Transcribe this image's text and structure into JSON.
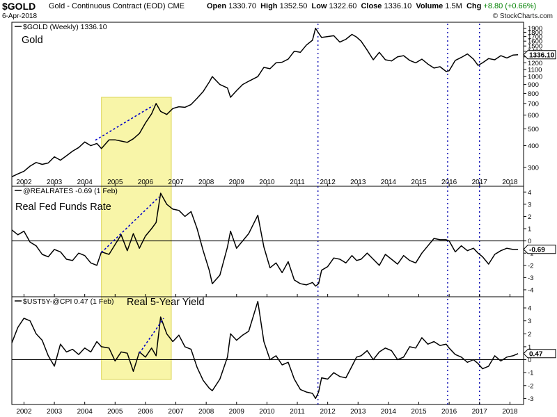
{
  "header": {
    "symbol": "$GOLD",
    "name": "Gold - Continuous Contract (EOD) CME",
    "date": "6-Apr-2018",
    "open_label": "Open",
    "open": "1330.70",
    "high_label": "High",
    "high": "1352.50",
    "low_label": "Low",
    "low": "1322.60",
    "close_label": "Close",
    "close": "1336.10",
    "volume_label": "Volume",
    "volume": "1.5M",
    "chg_label": "Chg",
    "chg": "+8.80 (+0.66%)",
    "chg_color": "#008000",
    "watermark": "© StockCharts.com"
  },
  "colors": {
    "highlight_fill": "#f7f49a",
    "highlight_stroke": "#d8cf3a",
    "trend_line": "#0000c8",
    "event_line": "#0000b0",
    "price_line": "#000000",
    "zero_line": "#000000"
  },
  "chart_data": [
    {
      "type": "line",
      "panel_title": "$GOLD (Weekly) 1336.10",
      "label": "Gold",
      "ylim": [
        240,
        2000
      ],
      "y_scale": "log",
      "y_ticks": [
        300,
        400,
        500,
        600,
        700,
        800,
        900,
        1000,
        1100,
        1200,
        1300,
        1400,
        1500,
        1600,
        1700,
        1800,
        1900
      ],
      "last_value_label": "1336.10",
      "x": [
        2001.6,
        2001.8,
        2002.0,
        2002.2,
        2002.4,
        2002.6,
        2002.8,
        2003.0,
        2003.2,
        2003.4,
        2003.6,
        2003.8,
        2004.0,
        2004.2,
        2004.4,
        2004.55,
        2004.8,
        2005.0,
        2005.2,
        2005.4,
        2005.6,
        2005.8,
        2006.0,
        2006.2,
        2006.35,
        2006.5,
        2006.7,
        2006.9,
        2007.1,
        2007.3,
        2007.5,
        2007.7,
        2007.9,
        2008.1,
        2008.2,
        2008.45,
        2008.7,
        2008.8,
        2009.0,
        2009.2,
        2009.4,
        2009.7,
        2009.9,
        2010.1,
        2010.3,
        2010.5,
        2010.7,
        2010.9,
        2011.1,
        2011.3,
        2011.5,
        2011.6,
        2011.7,
        2011.8,
        2012.0,
        2012.2,
        2012.4,
        2012.6,
        2012.8,
        2012.95,
        2013.1,
        2013.3,
        2013.5,
        2013.7,
        2013.9,
        2014.1,
        2014.3,
        2014.5,
        2014.7,
        2014.9,
        2015.1,
        2015.3,
        2015.5,
        2015.7,
        2015.9,
        2016.0,
        2016.2,
        2016.4,
        2016.6,
        2016.8,
        2016.95,
        2017.1,
        2017.3,
        2017.5,
        2017.7,
        2017.9,
        2018.1,
        2018.27
      ],
      "y": [
        265,
        275,
        285,
        305,
        320,
        312,
        318,
        345,
        330,
        350,
        372,
        390,
        420,
        400,
        412,
        385,
        432,
        432,
        425,
        418,
        438,
        470,
        540,
        610,
        700,
        630,
        605,
        655,
        670,
        665,
        690,
        750,
        820,
        930,
        1000,
        900,
        860,
        760,
        830,
        900,
        940,
        1000,
        1130,
        1110,
        1200,
        1210,
        1260,
        1400,
        1380,
        1520,
        1620,
        1900,
        1780,
        1680,
        1700,
        1720,
        1580,
        1640,
        1750,
        1690,
        1600,
        1420,
        1250,
        1380,
        1250,
        1230,
        1300,
        1320,
        1240,
        1200,
        1260,
        1180,
        1120,
        1140,
        1070,
        1080,
        1240,
        1290,
        1350,
        1260,
        1160,
        1200,
        1270,
        1250,
        1320,
        1280,
        1330,
        1336
      ]
    },
    {
      "type": "line",
      "panel_title": "@REALRATES -0.69 (1 Feb)",
      "label": "Real Fed Funds Rate",
      "ylim": [
        -4.4,
        4.3
      ],
      "y_ticks": [
        -4,
        -3,
        -2,
        -1,
        0,
        1,
        2,
        3,
        4
      ],
      "reference_line": 0,
      "last_value_label": "-0.69",
      "x": [
        2001.6,
        2001.8,
        2002.0,
        2002.2,
        2002.4,
        2002.6,
        2002.8,
        2003.0,
        2003.2,
        2003.4,
        2003.6,
        2003.8,
        2004.0,
        2004.2,
        2004.4,
        2004.55,
        2004.8,
        2005.0,
        2005.2,
        2005.4,
        2005.6,
        2005.8,
        2006.0,
        2006.2,
        2006.35,
        2006.5,
        2006.7,
        2006.9,
        2007.1,
        2007.3,
        2007.5,
        2007.7,
        2007.9,
        2008.1,
        2008.2,
        2008.45,
        2008.7,
        2008.8,
        2009.0,
        2009.2,
        2009.4,
        2009.7,
        2009.9,
        2010.1,
        2010.3,
        2010.5,
        2010.7,
        2010.9,
        2011.1,
        2011.3,
        2011.5,
        2011.6,
        2011.7,
        2011.8,
        2012.0,
        2012.2,
        2012.4,
        2012.6,
        2012.8,
        2012.95,
        2013.1,
        2013.3,
        2013.5,
        2013.7,
        2013.9,
        2014.1,
        2014.3,
        2014.5,
        2014.7,
        2014.9,
        2015.1,
        2015.3,
        2015.5,
        2015.7,
        2015.9,
        2016.0,
        2016.2,
        2016.4,
        2016.6,
        2016.8,
        2016.95,
        2017.1,
        2017.3,
        2017.5,
        2017.7,
        2017.9,
        2018.1,
        2018.27
      ],
      "y": [
        0.9,
        0.5,
        0.8,
        -0.1,
        -0.4,
        -1.1,
        -1.3,
        -0.7,
        -0.9,
        -1.5,
        -1.6,
        -1.0,
        -1.2,
        -1.8,
        -2.0,
        -0.9,
        -1.1,
        -0.3,
        0.5,
        -0.8,
        0.6,
        -0.6,
        0.4,
        1.0,
        1.5,
        3.9,
        3.0,
        2.6,
        2.5,
        2.0,
        2.4,
        1.0,
        -0.8,
        -2.4,
        -3.5,
        -2.8,
        -0.5,
        0.8,
        -0.6,
        0.0,
        0.6,
        2.1,
        -0.5,
        -2.2,
        -1.8,
        -2.6,
        -1.7,
        -3.2,
        -3.5,
        -3.6,
        -3.4,
        -3.7,
        -3.5,
        -2.4,
        -2.1,
        -1.4,
        -1.5,
        -1.8,
        -1.2,
        -1.6,
        -1.5,
        -1.0,
        -1.5,
        -2.0,
        -1.1,
        -1.5,
        -1.9,
        -1.2,
        -1.6,
        -1.8,
        -1.0,
        -0.4,
        0.2,
        0.1,
        0.1,
        0.0,
        -0.9,
        -0.4,
        -0.8,
        -0.6,
        -1.0,
        -1.3,
        -1.9,
        -1.1,
        -0.8,
        -0.6,
        -0.7,
        -0.69
      ]
    },
    {
      "type": "line",
      "panel_title": "$UST5Y-@CPI 0.47 (1 Feb)",
      "label": "Real 5-Year Yield",
      "ylim": [
        -3.3,
        4.7
      ],
      "y_ticks": [
        -3,
        -2,
        -1,
        0,
        1,
        2,
        3,
        4
      ],
      "reference_line": 0,
      "last_value_label": "0.47",
      "x": [
        2001.6,
        2001.8,
        2002.0,
        2002.2,
        2002.4,
        2002.6,
        2002.8,
        2003.0,
        2003.2,
        2003.4,
        2003.6,
        2003.8,
        2004.0,
        2004.2,
        2004.4,
        2004.55,
        2004.8,
        2005.0,
        2005.2,
        2005.4,
        2005.6,
        2005.8,
        2006.0,
        2006.2,
        2006.35,
        2006.5,
        2006.7,
        2006.9,
        2007.1,
        2007.3,
        2007.5,
        2007.7,
        2007.9,
        2008.1,
        2008.2,
        2008.45,
        2008.7,
        2008.8,
        2009.0,
        2009.2,
        2009.4,
        2009.7,
        2009.9,
        2010.1,
        2010.3,
        2010.5,
        2010.7,
        2010.9,
        2011.1,
        2011.3,
        2011.5,
        2011.6,
        2011.7,
        2011.8,
        2012.0,
        2012.2,
        2012.4,
        2012.6,
        2012.8,
        2012.95,
        2013.1,
        2013.3,
        2013.5,
        2013.7,
        2013.9,
        2014.1,
        2014.3,
        2014.5,
        2014.7,
        2014.9,
        2015.1,
        2015.3,
        2015.5,
        2015.7,
        2015.9,
        2016.0,
        2016.2,
        2016.4,
        2016.6,
        2016.8,
        2016.95,
        2017.1,
        2017.3,
        2017.5,
        2017.7,
        2017.9,
        2018.1,
        2018.27
      ],
      "y": [
        1.3,
        2.5,
        3.2,
        3.0,
        2.0,
        1.5,
        0.3,
        -0.5,
        1.2,
        0.6,
        0.8,
        0.4,
        0.9,
        0.6,
        1.4,
        1.0,
        0.9,
        -0.1,
        0.6,
        0.5,
        -0.9,
        0.6,
        0.2,
        0.9,
        0.3,
        3.3,
        2.0,
        1.4,
        1.9,
        1.0,
        0.8,
        -0.6,
        -1.6,
        -2.2,
        -2.4,
        -1.5,
        0.2,
        2.0,
        1.5,
        1.9,
        2.2,
        4.5,
        1.4,
        0.0,
        0.3,
        -0.4,
        -0.2,
        -1.5,
        -2.3,
        -2.5,
        -2.6,
        -3.0,
        -2.5,
        -1.4,
        -1.5,
        -1.0,
        -1.3,
        -1.4,
        -0.5,
        0.2,
        0.3,
        0.7,
        0.0,
        0.6,
        0.9,
        0.7,
        0.0,
        0.2,
        1.0,
        0.9,
        1.7,
        1.2,
        1.4,
        1.1,
        1.2,
        0.9,
        0.4,
        0.2,
        -0.2,
        0.0,
        -0.3,
        -0.7,
        -0.5,
        0.3,
        -0.1,
        0.2,
        0.3,
        0.47
      ]
    }
  ],
  "x_axis": {
    "ticks": [
      2002,
      2003,
      2004,
      2005,
      2006,
      2007,
      2008,
      2009,
      2010,
      2011,
      2012,
      2013,
      2014,
      2015,
      2016,
      2017,
      2018
    ],
    "labels": [
      "2002",
      "2003",
      "2004",
      "2005",
      "2006",
      "2007",
      "2008",
      "2009",
      "2010",
      "2011",
      "2012",
      "2013",
      "2014",
      "2015",
      "2016",
      "2017",
      "2018"
    ],
    "range": [
      2001.6,
      2018.45
    ]
  },
  "highlight_range": [
    2004.55,
    2006.85
  ],
  "event_lines": [
    2011.68,
    2015.95,
    2017.0
  ],
  "trend_lines": [
    {
      "panel": 0,
      "from": [
        2004.35,
        430
      ],
      "to": [
        2006.25,
        680
      ]
    },
    {
      "panel": 1,
      "from": [
        2004.55,
        -0.95
      ],
      "to": [
        2006.45,
        3.6
      ]
    },
    {
      "panel": 2,
      "from": [
        2005.8,
        0.5
      ],
      "to": [
        2006.6,
        3.2
      ]
    }
  ]
}
